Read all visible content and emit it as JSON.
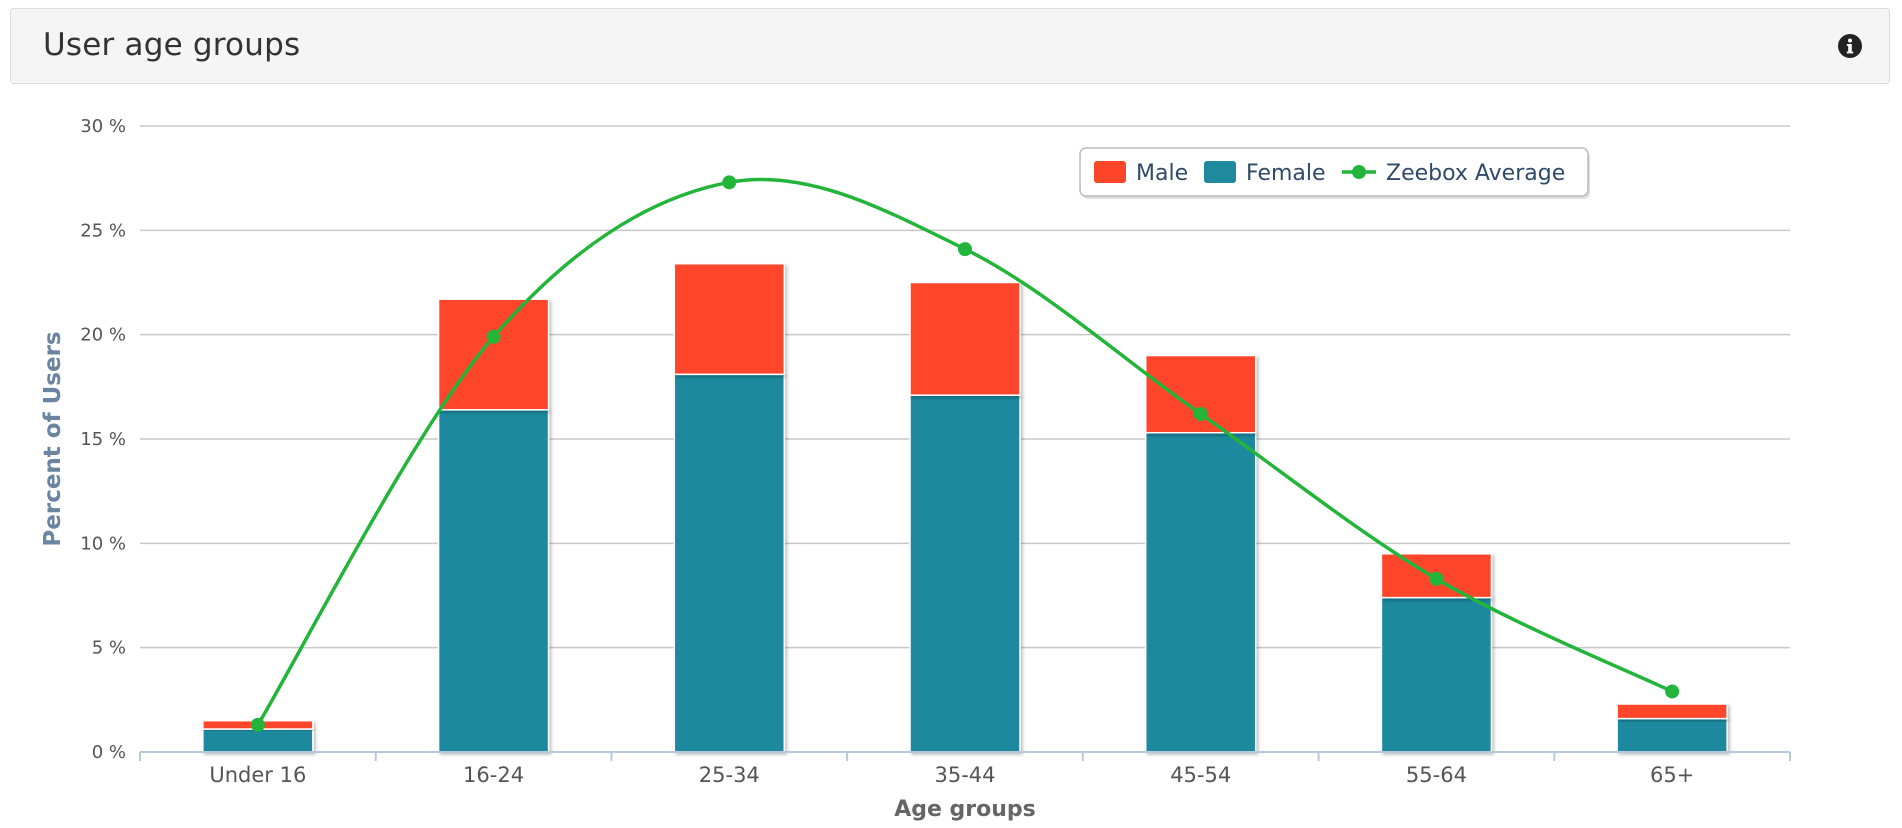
{
  "panel": {
    "title": "User age groups",
    "info_icon": "info-icon"
  },
  "colors": {
    "male": "#ff4529",
    "female": "#1f899e",
    "average": "#22b53a",
    "grid": "#c8c8c8",
    "axis_title": "#6a84a2",
    "tick_text": "#555555"
  },
  "chart_data": {
    "type": "bar",
    "stacked": true,
    "title": "",
    "xlabel": "Age groups",
    "ylabel": "Percent of Users",
    "categories": [
      "Under 16",
      "16-24",
      "25-34",
      "35-44",
      "45-54",
      "55-64",
      "65+"
    ],
    "ylim": [
      0,
      30
    ],
    "yticks": [
      0,
      5,
      10,
      15,
      20,
      25,
      30
    ],
    "ytick_labels": [
      "0 %",
      "5 %",
      "10 %",
      "15 %",
      "20 %",
      "25 %",
      "30 %"
    ],
    "grid": true,
    "legend_position": "top-right",
    "series": [
      {
        "name": "Female",
        "type": "bar",
        "values": [
          1.1,
          16.4,
          18.1,
          17.1,
          15.3,
          7.4,
          1.6
        ]
      },
      {
        "name": "Male",
        "type": "bar",
        "values": [
          0.4,
          5.3,
          5.3,
          5.4,
          3.7,
          2.1,
          0.7
        ]
      },
      {
        "name": "Zeebox Average",
        "type": "line",
        "smooth": true,
        "values": [
          1.3,
          19.9,
          27.3,
          24.1,
          16.2,
          8.3,
          2.9
        ]
      }
    ],
    "legend": [
      "Male",
      "Female",
      "Zeebox Average"
    ]
  }
}
